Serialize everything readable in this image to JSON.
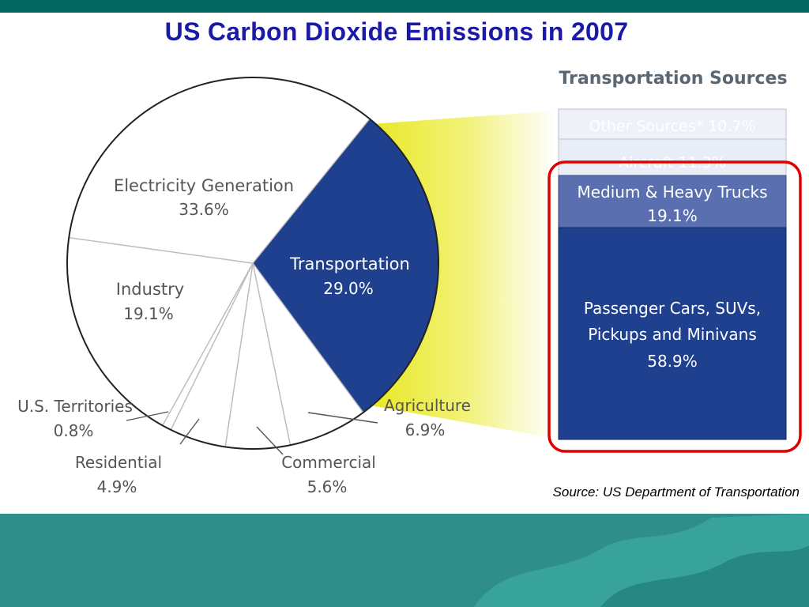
{
  "slide": {
    "title": "US Carbon Dioxide Emissions in 2007",
    "source": "Source: US Department of Transportation"
  },
  "colors": {
    "title": "#1a1aa6",
    "top_band": "#00665f",
    "bottom_band": "#2f8f88",
    "transport_slice": "#1f3f8f",
    "connector": "#ecec2a",
    "highlight": "#e00000",
    "bar_dark": "#1f3f8f",
    "bar_mid": "#5a6fb0",
    "bar_light": "#e8ecf4"
  },
  "chart_data": [
    {
      "type": "pie",
      "title": "US Carbon Dioxide Emissions in 2007",
      "slices": [
        {
          "label": "Transportation",
          "value": 29.0,
          "display": "29.0%"
        },
        {
          "label": "Agriculture",
          "value": 6.9,
          "display": "6.9%"
        },
        {
          "label": "Commercial",
          "value": 5.6,
          "display": "5.6%"
        },
        {
          "label": "Residential",
          "value": 4.9,
          "display": "4.9%"
        },
        {
          "label": "U.S. Territories",
          "value": 0.8,
          "display": "0.8%"
        },
        {
          "label": "Industry",
          "value": 19.1,
          "display": "19.1%"
        },
        {
          "label": "Electricity Generation",
          "value": 33.6,
          "display": "33.6%"
        }
      ]
    },
    {
      "type": "bar",
      "stacked": true,
      "title": "Transportation Sources",
      "segments": [
        {
          "label": "Other Sources*",
          "value": 10.7,
          "display": "Other Sources*  10.7%"
        },
        {
          "label": "Aircraft",
          "value": 11.3,
          "display": "Aircraft  11.3%"
        },
        {
          "label": "Medium & Heavy Trucks",
          "value": 19.1,
          "display": "19.1%"
        },
        {
          "label": "Passenger Cars, SUVs, Pickups and Minivans",
          "value": 58.9,
          "display": "58.9%"
        }
      ],
      "highlighted": [
        "Medium & Heavy Trucks",
        "Passenger Cars, SUVs, Pickups and Minivans"
      ]
    }
  ],
  "pie_labels": {
    "electricity": {
      "line1": "Electricity Generation",
      "line2": "33.6%"
    },
    "industry": {
      "line1": "Industry",
      "line2": "19.1%"
    },
    "transportation": {
      "line1": "Transportation",
      "line2": "29.0%"
    },
    "territories": {
      "line1": "U.S. Territories",
      "line2": "0.8%"
    },
    "residential": {
      "line1": "Residential",
      "line2": "4.9%"
    },
    "commercial": {
      "line1": "Commercial",
      "line2": "5.6%"
    },
    "agriculture": {
      "line1": "Agriculture",
      "line2": "6.9%"
    }
  },
  "bar_labels": {
    "other": "Other Sources*  10.7%",
    "aircraft": "Aircraft  11.3%",
    "trucks_line1": "Medium & Heavy Trucks",
    "trucks_line2": "19.1%",
    "cars_line1": "Passenger Cars, SUVs,",
    "cars_line2": "Pickups and Minivans",
    "cars_line3": "58.9%"
  }
}
